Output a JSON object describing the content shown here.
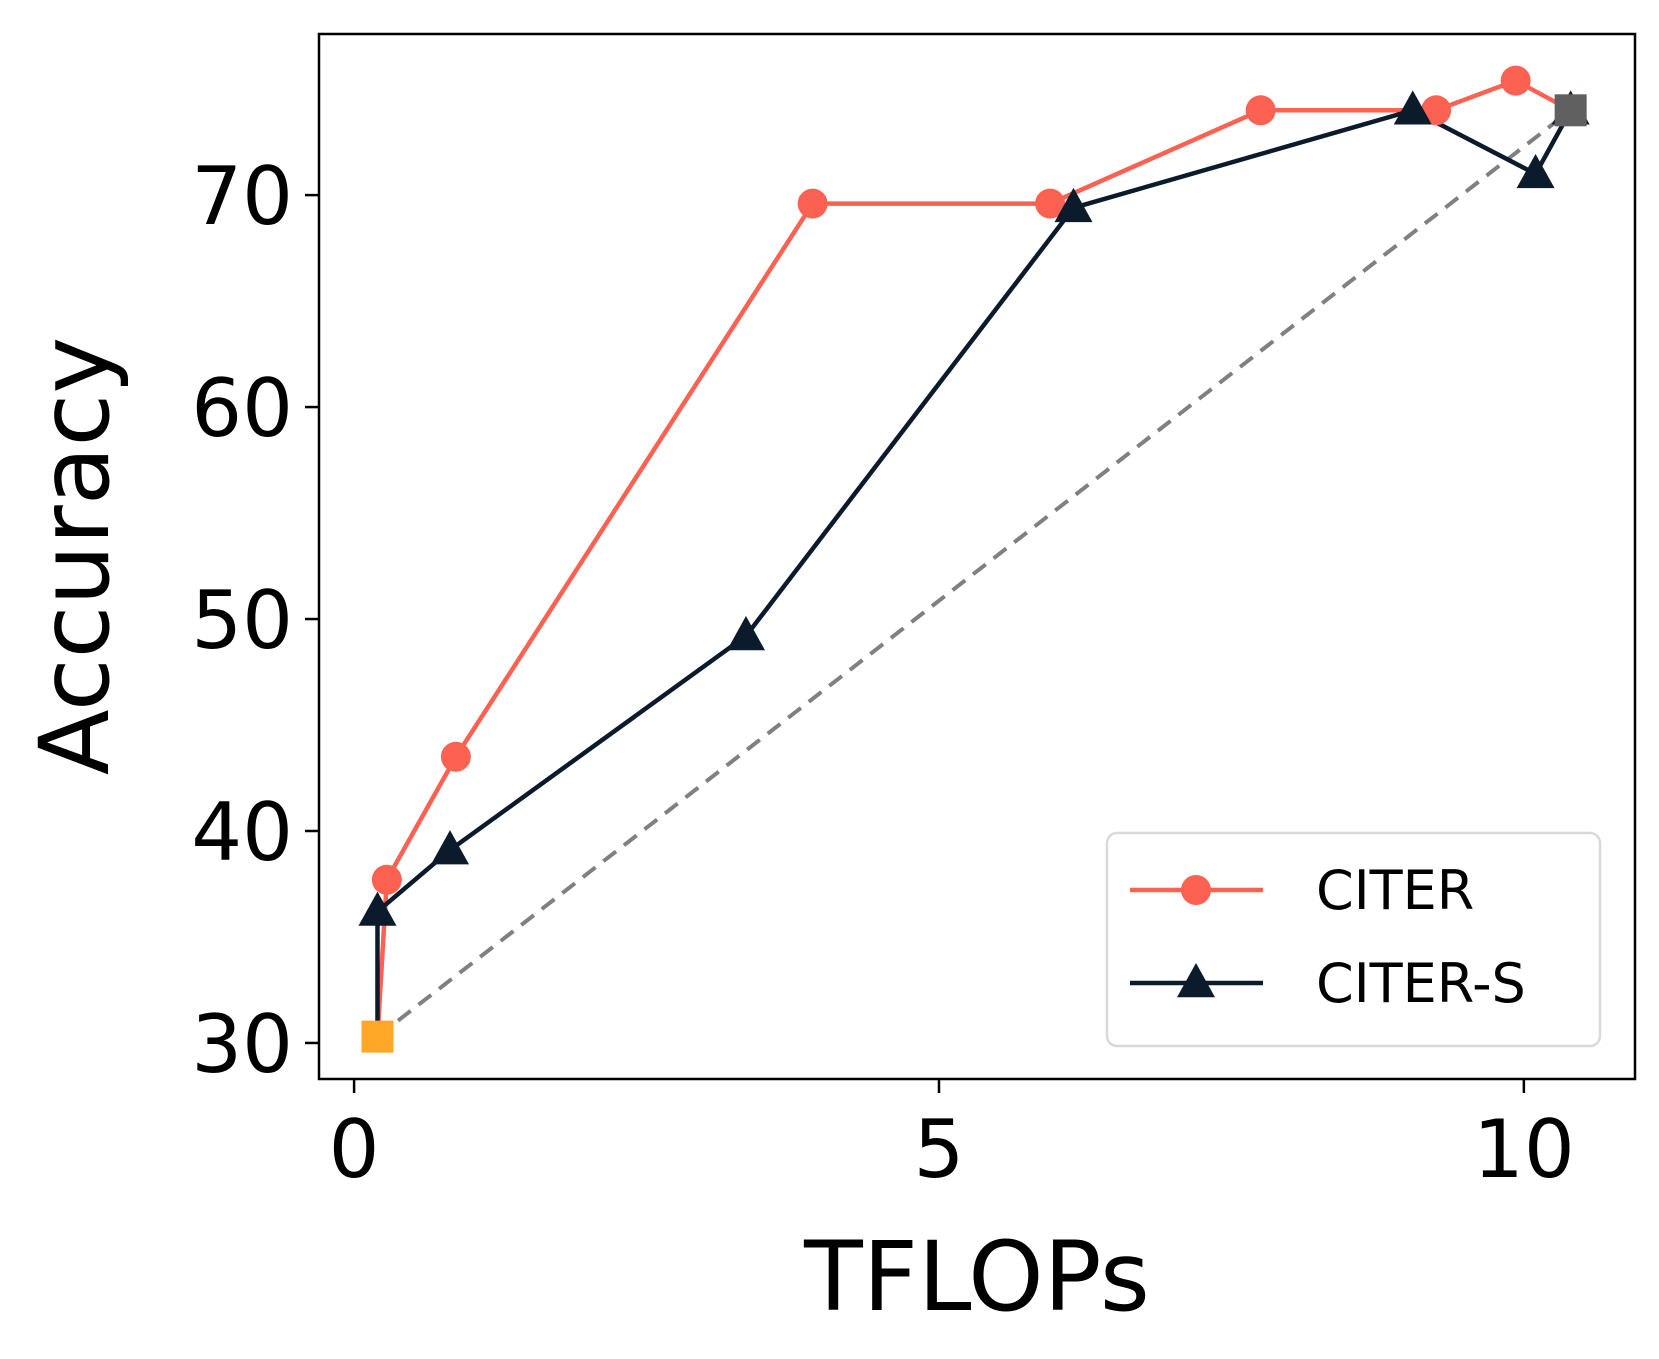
{
  "chart_data": {
    "type": "line",
    "xlabel": "TFLOPs",
    "ylabel": "Accuracy",
    "xlim": [
      -0.3,
      10.95
    ],
    "ylim": [
      28.3,
      77.6
    ],
    "xticks": [
      0,
      5,
      10
    ],
    "yticks": [
      30,
      40,
      50,
      60,
      70
    ],
    "xtick_labels": [
      "0",
      "5",
      "10"
    ],
    "ytick_labels": [
      "30",
      "40",
      "50",
      "60",
      "70"
    ],
    "legend_position": "lower-right",
    "series": [
      {
        "name": "CITER",
        "color": "#fc6152",
        "marker": "circle",
        "points": [
          {
            "x": 0.2,
            "y": 30.3
          },
          {
            "x": 0.28,
            "y": 37.7
          },
          {
            "x": 0.87,
            "y": 43.5
          },
          {
            "x": 3.92,
            "y": 69.6
          },
          {
            "x": 5.95,
            "y": 69.6
          },
          {
            "x": 7.75,
            "y": 74.0
          },
          {
            "x": 9.25,
            "y": 74.0
          },
          {
            "x": 9.93,
            "y": 75.4
          },
          {
            "x": 10.4,
            "y": 74.0
          }
        ]
      },
      {
        "name": "CITER-S",
        "color": "#0b1b2b",
        "marker": "triangle",
        "points": [
          {
            "x": 0.2,
            "y": 30.3
          },
          {
            "x": 0.2,
            "y": 36.2
          },
          {
            "x": 0.82,
            "y": 39.1
          },
          {
            "x": 3.35,
            "y": 49.2
          },
          {
            "x": 6.15,
            "y": 69.4
          },
          {
            "x": 9.05,
            "y": 74.0
          },
          {
            "x": 10.1,
            "y": 71.0
          },
          {
            "x": 10.4,
            "y": 74.0
          }
        ]
      }
    ],
    "reference_line": {
      "style": "dashed",
      "color": "#808080",
      "from": {
        "x": 0.2,
        "y": 30.3
      },
      "to": {
        "x": 10.4,
        "y": 74.0
      }
    },
    "endpoint_markers": [
      {
        "x": 0.2,
        "y": 30.3,
        "color": "#ffa726",
        "shape": "square"
      },
      {
        "x": 10.4,
        "y": 74.0,
        "color": "#606060",
        "shape": "square"
      }
    ]
  }
}
